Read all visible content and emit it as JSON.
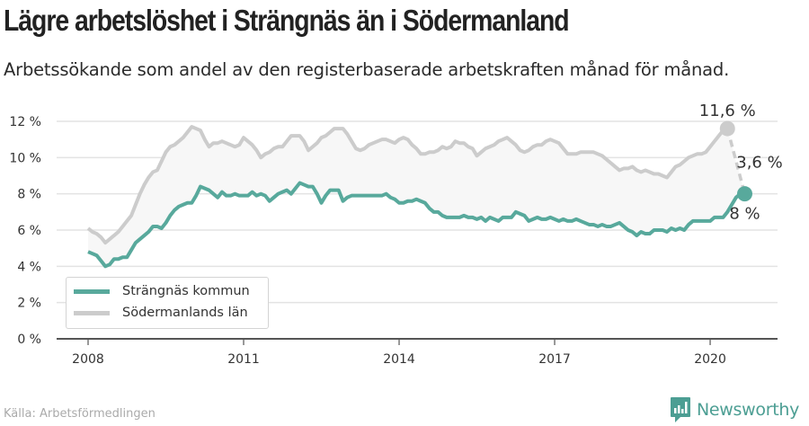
{
  "header": {
    "title": "Lägre arbetslöshet i Strängnäs än i Södermanland",
    "subtitle": "Arbetssökande som andel av den registerbaserade arbetskraften månad för månad."
  },
  "footer": {
    "source": "Källa: Arbetsförmedlingen",
    "brand": "Newsworthy",
    "brand_icon": "bar-chart-speech-bubble-icon"
  },
  "colors": {
    "strangnas": "#58a99c",
    "sodermanland": "#cccccc",
    "band_fill": "#f7f7f7",
    "grid": "#e3e3e3",
    "axis": "#555555",
    "brand": "#4c9e93"
  },
  "chart_data": {
    "type": "line",
    "title": "Lägre arbetslöshet i Strängnäs än i Södermanland",
    "subtitle": "Arbetssökande som andel av den registerbaserade arbetskraften månad för månad.",
    "xlabel": "",
    "ylabel": "",
    "x_start": "2008-01",
    "x_frequency": "monthly",
    "xlim": [
      2007.6,
      2021.3
    ],
    "ylim": [
      0,
      12
    ],
    "grid": true,
    "legend_position": "bottom-left",
    "x_ticks": [
      2008,
      2011,
      2014,
      2017,
      2020
    ],
    "x_tick_labels": [
      "2008",
      "2011",
      "2014",
      "2017",
      "2020"
    ],
    "y_ticks": [
      0,
      2,
      4,
      6,
      8,
      10,
      12
    ],
    "y_tick_labels": [
      "0 %",
      "2 %",
      "4 %",
      "6 %",
      "8 %",
      "10 %",
      "12 %"
    ],
    "series": [
      {
        "name": "Strängnäs kommun",
        "values": [
          4.8,
          4.7,
          4.6,
          4.3,
          4.0,
          4.1,
          4.4,
          4.4,
          4.5,
          4.5,
          4.9,
          5.3,
          5.5,
          5.7,
          5.9,
          6.2,
          6.2,
          6.1,
          6.4,
          6.8,
          7.1,
          7.3,
          7.4,
          7.5,
          7.5,
          7.9,
          8.4,
          8.3,
          8.2,
          8.0,
          7.8,
          8.1,
          7.9,
          7.9,
          8.0,
          7.9,
          7.9,
          7.9,
          8.1,
          7.9,
          8.0,
          7.9,
          7.6,
          7.8,
          8.0,
          8.1,
          8.2,
          8.0,
          8.3,
          8.6,
          8.5,
          8.4,
          8.4,
          8.0,
          7.5,
          7.9,
          8.2,
          8.2,
          8.2,
          7.6,
          7.8,
          7.9,
          7.9,
          7.9,
          7.9,
          7.9,
          7.9,
          7.9,
          7.9,
          8.0,
          7.8,
          7.7,
          7.5,
          7.5,
          7.6,
          7.6,
          7.7,
          7.6,
          7.5,
          7.2,
          7.0,
          7.0,
          6.8,
          6.7,
          6.7,
          6.7,
          6.7,
          6.8,
          6.7,
          6.7,
          6.6,
          6.7,
          6.5,
          6.7,
          6.6,
          6.5,
          6.7,
          6.7,
          6.7,
          7.0,
          6.9,
          6.8,
          6.5,
          6.6,
          6.7,
          6.6,
          6.6,
          6.7,
          6.6,
          6.5,
          6.6,
          6.5,
          6.5,
          6.6,
          6.5,
          6.4,
          6.3,
          6.3,
          6.2,
          6.3,
          6.2,
          6.2,
          6.3,
          6.4,
          6.2,
          6.0,
          5.9,
          5.7,
          5.9,
          5.8,
          5.8,
          6.0,
          6.0,
          6.0,
          5.9,
          6.1,
          6.0,
          6.1,
          6.0,
          6.3,
          6.5,
          6.5,
          6.5,
          6.5,
          6.5,
          6.7,
          6.7,
          6.7,
          7.0,
          7.4,
          7.8,
          8.0,
          8.0
        ],
        "last_value_label": "8 %"
      },
      {
        "name": "Södermanlands län",
        "values": [
          6.1,
          5.9,
          5.8,
          5.6,
          5.3,
          5.5,
          5.7,
          5.9,
          6.2,
          6.5,
          6.8,
          7.4,
          8.0,
          8.5,
          8.9,
          9.2,
          9.3,
          9.8,
          10.3,
          10.6,
          10.7,
          10.9,
          11.1,
          11.4,
          11.7,
          11.6,
          11.5,
          11.0,
          10.6,
          10.8,
          10.8,
          10.9,
          10.8,
          10.7,
          10.6,
          10.7,
          11.1,
          10.9,
          10.7,
          10.4,
          10.0,
          10.2,
          10.3,
          10.5,
          10.6,
          10.6,
          10.9,
          11.2,
          11.2,
          11.2,
          10.9,
          10.4,
          10.6,
          10.8,
          11.1,
          11.2,
          11.4,
          11.6,
          11.6,
          11.6,
          11.3,
          10.9,
          10.5,
          10.4,
          10.5,
          10.7,
          10.8,
          10.9,
          11.0,
          11.0,
          10.9,
          10.8,
          11.0,
          11.1,
          11.0,
          10.7,
          10.5,
          10.2,
          10.2,
          10.3,
          10.3,
          10.4,
          10.6,
          10.5,
          10.6,
          10.9,
          10.8,
          10.8,
          10.6,
          10.5,
          10.1,
          10.3,
          10.5,
          10.6,
          10.7,
          10.9,
          11.0,
          11.1,
          10.9,
          10.7,
          10.4,
          10.3,
          10.4,
          10.6,
          10.7,
          10.7,
          10.9,
          11.0,
          10.9,
          10.8,
          10.5,
          10.2,
          10.2,
          10.2,
          10.3,
          10.3,
          10.3,
          10.3,
          10.2,
          10.1,
          9.9,
          9.7,
          9.5,
          9.3,
          9.4,
          9.4,
          9.5,
          9.3,
          9.2,
          9.3,
          9.2,
          9.1,
          9.1,
          9.0,
          8.9,
          9.2,
          9.5,
          9.6,
          9.8,
          10.0,
          10.1,
          10.2,
          10.2,
          10.3,
          10.6,
          10.9,
          11.2,
          11.5,
          11.6
        ],
        "last_value_label": "11,6 %"
      }
    ],
    "annotations": {
      "difference_label": "3,6 %",
      "top_label": "11,6 %",
      "bottom_label": "8 %"
    }
  }
}
